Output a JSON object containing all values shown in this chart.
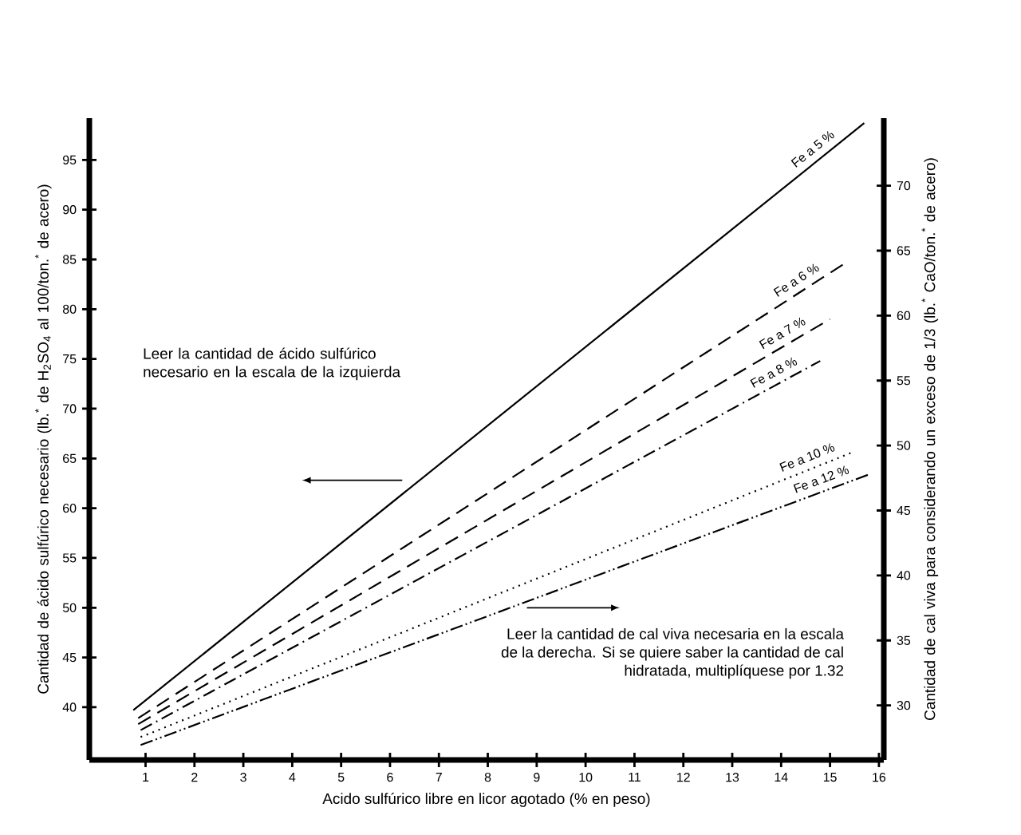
{
  "chart_data": {
    "type": "line",
    "xlabel": "Acido sulfúrico libre en licor agotado (% en peso)",
    "ylabel": "Cantidad de ácido sulfúrico necesario (lb.$^{*}$ de H$_{2}$SO$_{4}$ al 100/ton.$^{*}$ de acero)",
    "y2label": "Cantidad de cal viva para considerando un exceso de 1/3 (lb.$^{*}$ CaO/ton.$^{*}$ de acero)",
    "xlim": [
      -0.15,
      16.1
    ],
    "xticks": [
      1,
      2,
      3,
      4,
      5,
      6,
      7,
      8,
      9,
      10,
      11,
      12,
      13,
      14,
      15,
      16
    ],
    "ylim": [
      34.7,
      99.2
    ],
    "yticks": [
      40,
      45,
      50,
      55,
      60,
      65,
      70,
      75,
      80,
      85,
      90,
      95
    ],
    "y2lim": [
      25.8,
      75.2
    ],
    "y2ticks": [
      30,
      35,
      40,
      45,
      50,
      55,
      60,
      65,
      70
    ],
    "series": [
      {
        "name": "Fe a 5 %",
        "color": "#000000",
        "line_style": "solid",
        "x": [
          0.75,
          15.7
        ],
        "values": [
          39.7,
          98.7
        ]
      },
      {
        "name": "Fe a 6 %",
        "color": "#000000",
        "line_style": "dashed",
        "x": [
          0.85,
          15.3
        ],
        "values": [
          38.9,
          84.6
        ]
      },
      {
        "name": "Fe a 7 %",
        "color": "#000000",
        "line_style": "dashed",
        "x": [
          0.85,
          15.0
        ],
        "values": [
          38.3,
          79.0
        ]
      },
      {
        "name": "Fe a 8 %",
        "color": "#000000",
        "line_style": "dashdotted",
        "x": [
          0.9,
          14.8
        ],
        "values": [
          37.7,
          74.8
        ]
      },
      {
        "name": "Fe a 10 %",
        "color": "#000000",
        "line_style": "dotted",
        "x": [
          0.9,
          15.5
        ],
        "values": [
          37.0,
          65.7
        ]
      },
      {
        "name": "Fe a 12 %",
        "color": "#000000",
        "line_style": "dashdotdotted",
        "x": [
          0.9,
          15.8
        ],
        "values": [
          36.2,
          63.4
        ]
      }
    ],
    "annotations": [
      "Leer la cantidad de ácido sulfúrico necesario en la escala de la izquierda",
      "Leer la cantidad de cal viva necesaria en la escala de la derecha. Si se quiere saber la cantidad de cal hidratada, multiplíquese por 1.32"
    ]
  }
}
